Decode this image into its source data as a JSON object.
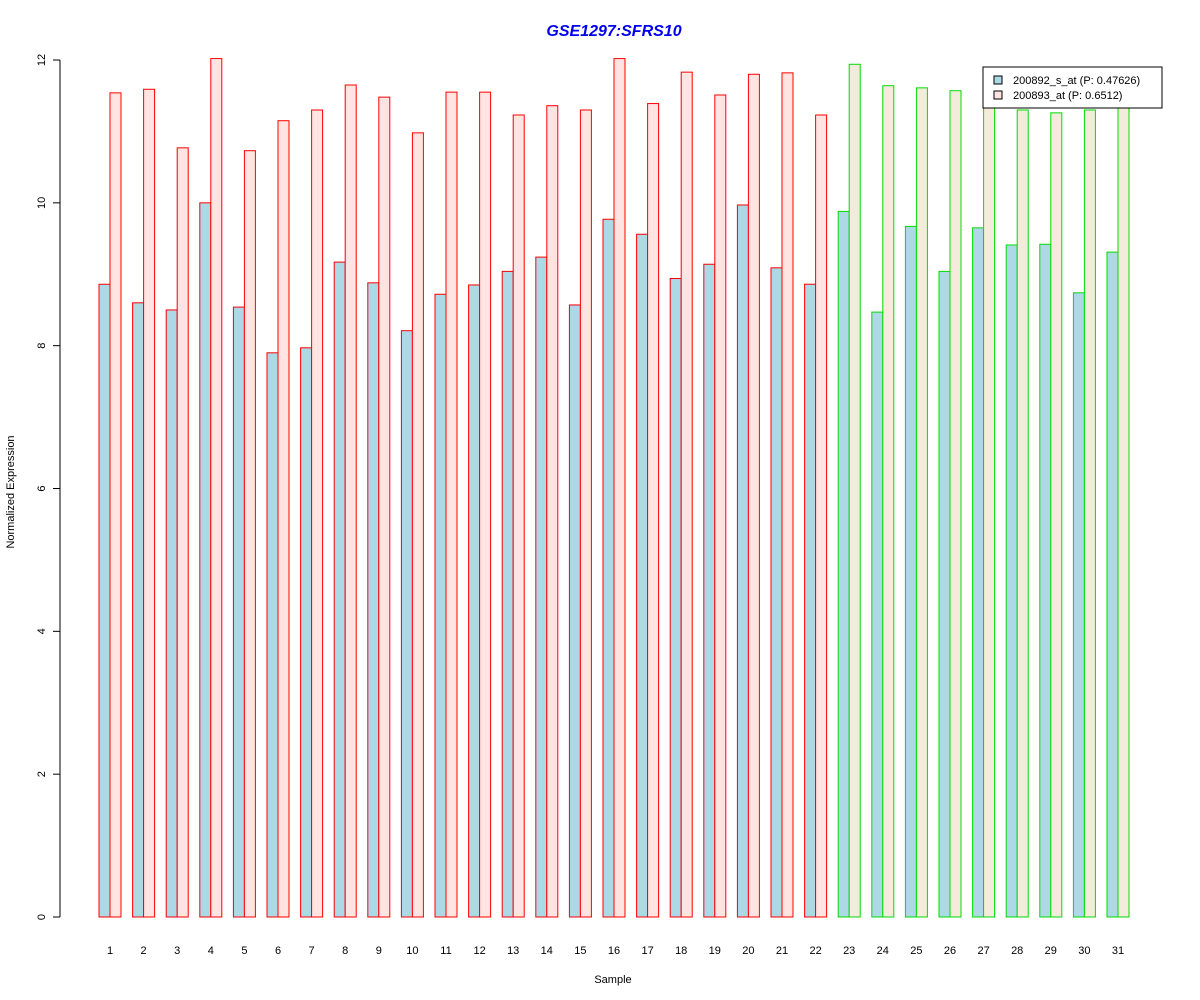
{
  "chart_data": {
    "type": "bar",
    "title": "GSE1297:SFRS10",
    "xlabel": "Sample",
    "ylabel": "Normalized Expression",
    "ylim": [
      0,
      12
    ],
    "yticks": [
      0,
      2,
      4,
      6,
      8,
      10,
      12
    ],
    "grid": false,
    "legend_position": "top-right",
    "categories": [
      "1",
      "2",
      "3",
      "4",
      "5",
      "6",
      "7",
      "8",
      "9",
      "10",
      "11",
      "12",
      "13",
      "14",
      "15",
      "16",
      "17",
      "18",
      "19",
      "20",
      "21",
      "22",
      "23",
      "24",
      "25",
      "26",
      "27",
      "28",
      "29",
      "30",
      "31"
    ],
    "series": [
      {
        "name": "200892_s_at (P: 0.47626)",
        "fill": "#add8e6",
        "values": [
          8.86,
          8.6,
          8.5,
          10.0,
          8.54,
          7.9,
          7.97,
          9.17,
          8.88,
          8.21,
          8.72,
          8.85,
          9.04,
          9.24,
          8.57,
          9.77,
          9.56,
          8.94,
          9.14,
          9.97,
          9.09,
          8.86,
          9.88,
          8.47,
          9.67,
          9.04,
          9.65,
          9.41,
          9.42,
          8.74,
          9.31
        ]
      },
      {
        "name": "200893_at (P: 0.6512)",
        "fill_group1": "#ffe4e1",
        "fill_group2": "#f5ebdc",
        "values": [
          11.54,
          11.59,
          10.77,
          12.02,
          10.73,
          11.15,
          11.3,
          11.65,
          11.48,
          10.98,
          11.55,
          11.55,
          11.23,
          11.36,
          11.3,
          12.02,
          11.39,
          11.83,
          11.51,
          11.8,
          11.82,
          11.23,
          11.94,
          11.64,
          11.61,
          11.57,
          11.35,
          11.3,
          11.26,
          11.3,
          11.35
        ]
      }
    ],
    "groups": [
      {
        "samples_from": 1,
        "samples_to": 22,
        "border_color": "#ff0000"
      },
      {
        "samples_from": 23,
        "samples_to": 31,
        "border_color": "#00dd00"
      }
    ]
  }
}
